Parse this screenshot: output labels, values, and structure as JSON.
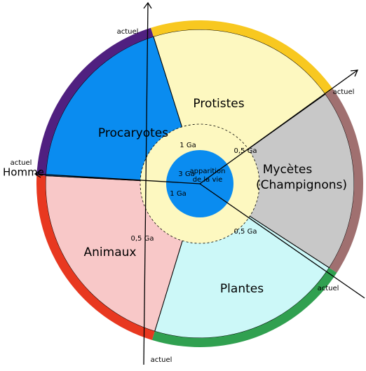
{
  "sectors": {
    "procaryotes": "Procaryotes",
    "protistes": "Protistes",
    "mycetes": [
      "Mycètes",
      "(Champignons)"
    ],
    "plantes": "Plantes",
    "animaux": "Animaux"
  },
  "center": {
    "age": "3 Ga",
    "label": [
      "apparition",
      "de la vie"
    ]
  },
  "ages": [
    "1 Ga",
    "0,5 Ga",
    "1 Ga",
    "0,5 Ga",
    "0,5 Ga"
  ],
  "present": [
    "actuel",
    "actuel",
    "actuel",
    "actuel",
    "actuel"
  ],
  "human": "Homme"
}
